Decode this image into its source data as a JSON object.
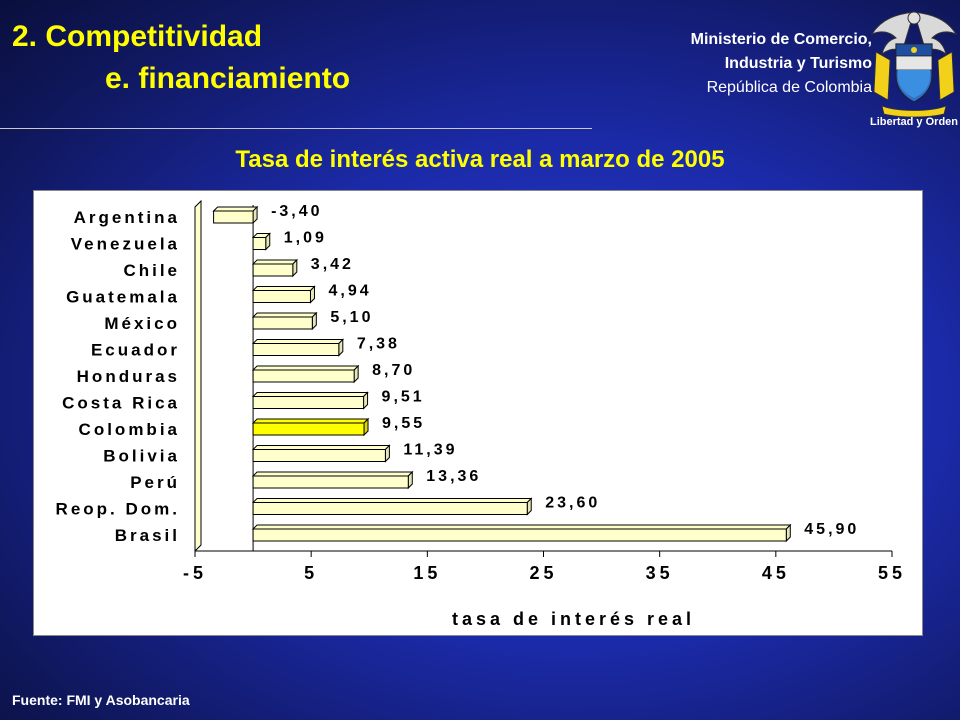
{
  "header": {
    "title": "2. Competitividad",
    "subtitle": "e. financiamiento",
    "ministry_line1": "Ministerio de Comercio,",
    "ministry_line2": "Industria y Turismo",
    "ministry_line3": "República de Colombia",
    "seal_motto": "Libertad y Orden"
  },
  "footer": {
    "source": "Fuente: FMI y Asobancaria"
  },
  "colors": {
    "background": "#1b2aa8",
    "title": "#ffff00",
    "bar_fill": "#ffffcc",
    "highlight_fill": "#ffff00",
    "bar_border": "#000000"
  },
  "chart_data": {
    "type": "bar",
    "orientation": "horizontal",
    "title": "Tasa de interés activa real a marzo de 2005",
    "xlabel": "tasa de interés real",
    "ylabel": "",
    "categories": [
      "Argentina",
      "Venezuela",
      "Chile",
      "Guatemala",
      "México",
      "Ecuador",
      "Honduras",
      "Costa Rica",
      "Colombia",
      "Bolivia",
      "Perú",
      "Reop. Dom.",
      "Brasil"
    ],
    "values": [
      -3.4,
      1.09,
      3.42,
      4.94,
      5.1,
      7.38,
      8.7,
      9.51,
      9.55,
      11.39,
      13.36,
      23.6,
      45.9
    ],
    "value_labels": [
      "-3,40",
      "1,09",
      "3,42",
      "4,94",
      "5,10",
      "7,38",
      "8,70",
      "9,51",
      "9,55",
      "11,39",
      "13,36",
      "23,60",
      "45,90"
    ],
    "highlight": "Colombia",
    "xlim": [
      -5,
      55
    ],
    "xticks": [
      -5,
      5,
      15,
      25,
      35,
      45,
      55
    ],
    "xtick_labels": [
      "-5",
      "5",
      "15",
      "25",
      "35",
      "45",
      "55"
    ],
    "grid": false,
    "style": "3d"
  }
}
